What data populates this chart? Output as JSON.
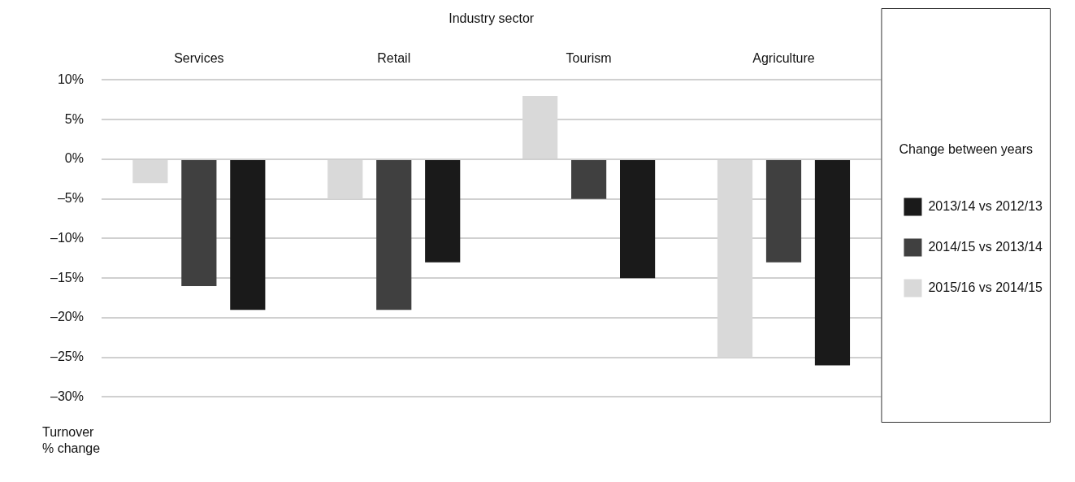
{
  "chart_data": {
    "type": "bar",
    "xlabel": "Industry sector",
    "ylabel": "Turnover % change",
    "legend_title": "Change between years",
    "categories": [
      "Services",
      "Retail",
      "Tourism",
      "Agriculture"
    ],
    "series": [
      {
        "name": "2015/16 vs 2014/15",
        "color": "#d9d9d9",
        "values": [
          -3,
          -5,
          8,
          -25
        ]
      },
      {
        "name": "2014/15 vs 2013/14",
        "color": "#404040",
        "values": [
          -16,
          -19,
          -5,
          -13
        ]
      },
      {
        "name": "2013/14 vs 2012/13",
        "color": "#1a1a1a",
        "values": [
          -19,
          -13,
          -15,
          -26
        ]
      }
    ],
    "ylim": [
      -30,
      10
    ],
    "yticks": [
      {
        "value": 10,
        "label": "10%"
      },
      {
        "value": 5,
        "label": "5%"
      },
      {
        "value": 0,
        "label": "0%"
      },
      {
        "value": -5,
        "label": "–5%"
      },
      {
        "value": -10,
        "label": "–10%"
      },
      {
        "value": -15,
        "label": "–15%"
      },
      {
        "value": -20,
        "label": "–20%"
      },
      {
        "value": -25,
        "label": "–25%"
      },
      {
        "value": -30,
        "label": "–30%"
      }
    ],
    "grid": "y",
    "legend": "right"
  }
}
